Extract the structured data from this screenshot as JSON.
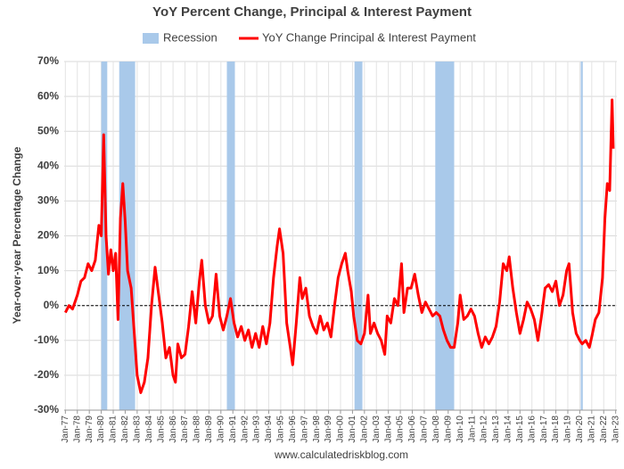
{
  "chart_data": {
    "type": "line",
    "title": "YoY Percent Change, Principal & Interest Payment",
    "y_label": "Year-over-year Percentage Change",
    "source": "www.calculatedriskblog.com",
    "recessions": {
      "name": "Recession",
      "color": "#a9c9ea",
      "periods": [
        [
          1980.0,
          1980.5
        ],
        [
          1981.5,
          1982.83
        ],
        [
          1990.5,
          1991.17
        ],
        [
          2001.17,
          2001.83
        ],
        [
          2007.92,
          2009.5
        ],
        [
          2020.08,
          2020.25
        ]
      ]
    },
    "x": [
      1977.0,
      1977.3,
      1977.6,
      1978.0,
      1978.3,
      1978.6,
      1978.9,
      1979.2,
      1979.5,
      1979.8,
      1980.0,
      1980.2,
      1980.4,
      1980.6,
      1980.8,
      1981.0,
      1981.2,
      1981.4,
      1981.6,
      1981.8,
      1982.0,
      1982.2,
      1982.5,
      1982.8,
      1983.0,
      1983.3,
      1983.6,
      1983.9,
      1984.2,
      1984.5,
      1984.8,
      1985.1,
      1985.4,
      1985.7,
      1986.0,
      1986.2,
      1986.4,
      1986.7,
      1987.0,
      1987.3,
      1987.6,
      1987.9,
      1988.2,
      1988.4,
      1988.7,
      1989.0,
      1989.3,
      1989.6,
      1989.9,
      1990.2,
      1990.5,
      1990.8,
      1991.1,
      1991.4,
      1991.7,
      1992.0,
      1992.3,
      1992.6,
      1992.9,
      1993.2,
      1993.5,
      1993.8,
      1994.1,
      1994.4,
      1994.7,
      1994.9,
      1995.2,
      1995.5,
      1995.8,
      1996.0,
      1996.3,
      1996.6,
      1996.8,
      1997.1,
      1997.4,
      1997.7,
      1998.0,
      1998.3,
      1998.6,
      1998.9,
      1999.2,
      1999.5,
      1999.8,
      2000.1,
      2000.4,
      2000.6,
      2000.9,
      2001.1,
      2001.4,
      2001.7,
      2002.0,
      2002.3,
      2002.5,
      2002.8,
      2003.1,
      2003.4,
      2003.7,
      2003.9,
      2004.2,
      2004.5,
      2004.8,
      2005.1,
      2005.3,
      2005.6,
      2005.9,
      2006.2,
      2006.5,
      2006.8,
      2007.1,
      2007.4,
      2007.7,
      2008.0,
      2008.3,
      2008.6,
      2008.9,
      2009.2,
      2009.5,
      2009.8,
      2010.0,
      2010.3,
      2010.6,
      2010.9,
      2011.2,
      2011.5,
      2011.8,
      2012.1,
      2012.4,
      2012.7,
      2013.0,
      2013.3,
      2013.6,
      2013.9,
      2014.1,
      2014.4,
      2014.7,
      2015.0,
      2015.3,
      2015.6,
      2015.9,
      2016.2,
      2016.5,
      2016.8,
      2017.1,
      2017.4,
      2017.7,
      2018.0,
      2018.3,
      2018.6,
      2018.9,
      2019.1,
      2019.4,
      2019.7,
      2020.0,
      2020.2,
      2020.5,
      2020.8,
      2021.0,
      2021.3,
      2021.6,
      2021.9,
      2022.1,
      2022.3,
      2022.5,
      2022.7,
      2022.8
    ],
    "series": [
      {
        "name": "YoY Change Principal & Interest Payment",
        "color": "#ff0000",
        "values": [
          -2,
          0,
          -1,
          3,
          7,
          8,
          12,
          10,
          13,
          23,
          20,
          49,
          20,
          9,
          16,
          10,
          15,
          -4,
          25,
          35,
          24,
          10,
          5,
          -10,
          -20,
          -25,
          -22,
          -15,
          0,
          11,
          3,
          -5,
          -15,
          -12,
          -20,
          -22,
          -11,
          -15,
          -14,
          -6,
          4,
          -5,
          7,
          13,
          0,
          -5,
          -3,
          9,
          -3,
          -7,
          -3,
          2,
          -5,
          -9,
          -6,
          -10,
          -7,
          -12,
          -8,
          -12,
          -6,
          -11,
          -5,
          8,
          17,
          22,
          15,
          -5,
          -12,
          -17,
          -5,
          8,
          2,
          5,
          -3,
          -6,
          -8,
          -3,
          -7,
          -5,
          -9,
          0,
          8,
          12,
          15,
          10,
          4,
          -3,
          -10,
          -11,
          -8,
          3,
          -8,
          -5,
          -8,
          -10,
          -14,
          -3,
          -5,
          2,
          0,
          12,
          -2,
          5,
          5,
          9,
          3,
          -2,
          1,
          -1,
          -3,
          -2,
          -3,
          -7,
          -10,
          -12,
          -12,
          -5,
          3,
          -4,
          -3,
          -1,
          -3,
          -8,
          -12,
          -9,
          -11,
          -9,
          -6,
          1,
          12,
          10,
          14,
          5,
          -2,
          -8,
          -4,
          1,
          -1,
          -4,
          -10,
          -3,
          5,
          6,
          4,
          7,
          0,
          3,
          10,
          12,
          -2,
          -8,
          -10,
          -11,
          -10,
          -12,
          -9,
          -4,
          -2,
          8,
          25,
          35,
          33,
          59,
          45
        ]
      }
    ],
    "xlim": [
      1976.9,
      2023.1
    ],
    "xticks": [
      {
        "value": 1977,
        "label": "Jan-77"
      },
      {
        "value": 1978,
        "label": "Jan-78"
      },
      {
        "value": 1979,
        "label": "Jan-79"
      },
      {
        "value": 1980,
        "label": "Jan-80"
      },
      {
        "value": 1981,
        "label": "Jan-81"
      },
      {
        "value": 1982,
        "label": "Jan-82"
      },
      {
        "value": 1983,
        "label": "Jan-83"
      },
      {
        "value": 1984,
        "label": "Jan-84"
      },
      {
        "value": 1985,
        "label": "Jan-85"
      },
      {
        "value": 1986,
        "label": "Jan-86"
      },
      {
        "value": 1987,
        "label": "Jan-87"
      },
      {
        "value": 1988,
        "label": "Jan-88"
      },
      {
        "value": 1989,
        "label": "Jan-89"
      },
      {
        "value": 1990,
        "label": "Jan-90"
      },
      {
        "value": 1991,
        "label": "Jan-91"
      },
      {
        "value": 1992,
        "label": "Jan-92"
      },
      {
        "value": 1993,
        "label": "Jan-93"
      },
      {
        "value": 1994,
        "label": "Jan-94"
      },
      {
        "value": 1995,
        "label": "Jan-95"
      },
      {
        "value": 1996,
        "label": "Jan-96"
      },
      {
        "value": 1997,
        "label": "Jan-97"
      },
      {
        "value": 1998,
        "label": "Jan-98"
      },
      {
        "value": 1999,
        "label": "Jan-99"
      },
      {
        "value": 2000,
        "label": "Jan-00"
      },
      {
        "value": 2001,
        "label": "Jan-01"
      },
      {
        "value": 2002,
        "label": "Jan-02"
      },
      {
        "value": 2003,
        "label": "Jan-03"
      },
      {
        "value": 2004,
        "label": "Jan-04"
      },
      {
        "value": 2005,
        "label": "Jan-05"
      },
      {
        "value": 2006,
        "label": "Jan-06"
      },
      {
        "value": 2007,
        "label": "Jan-07"
      },
      {
        "value": 2008,
        "label": "Jan-08"
      },
      {
        "value": 2009,
        "label": "Jan-09"
      },
      {
        "value": 2010,
        "label": "Jan-10"
      },
      {
        "value": 2011,
        "label": "Jan-11"
      },
      {
        "value": 2012,
        "label": "Jan-12"
      },
      {
        "value": 2013,
        "label": "Jan-13"
      },
      {
        "value": 2014,
        "label": "Jan-14"
      },
      {
        "value": 2015,
        "label": "Jan-15"
      },
      {
        "value": 2016,
        "label": "Jan-16"
      },
      {
        "value": 2017,
        "label": "Jan-17"
      },
      {
        "value": 2018,
        "label": "Jan-18"
      },
      {
        "value": 2019,
        "label": "Jan-19"
      },
      {
        "value": 2020,
        "label": "Jan-20"
      },
      {
        "value": 2021,
        "label": "Jan-21"
      },
      {
        "value": 2022,
        "label": "Jan-22"
      },
      {
        "value": 2023,
        "label": "Jan-23"
      }
    ],
    "ylim": [
      -30,
      70
    ],
    "yticks": [
      {
        "value": -30,
        "label": "-30%"
      },
      {
        "value": -20,
        "label": "-20%"
      },
      {
        "value": -10,
        "label": "-10%"
      },
      {
        "value": 0,
        "label": "0%"
      },
      {
        "value": 10,
        "label": "10%"
      },
      {
        "value": 20,
        "label": "20%"
      },
      {
        "value": 30,
        "label": "30%"
      },
      {
        "value": 40,
        "label": "40%"
      },
      {
        "value": 50,
        "label": "50%"
      },
      {
        "value": 60,
        "label": "60%"
      },
      {
        "value": 70,
        "label": "70%"
      }
    ],
    "grid": true,
    "zero_line": true
  }
}
